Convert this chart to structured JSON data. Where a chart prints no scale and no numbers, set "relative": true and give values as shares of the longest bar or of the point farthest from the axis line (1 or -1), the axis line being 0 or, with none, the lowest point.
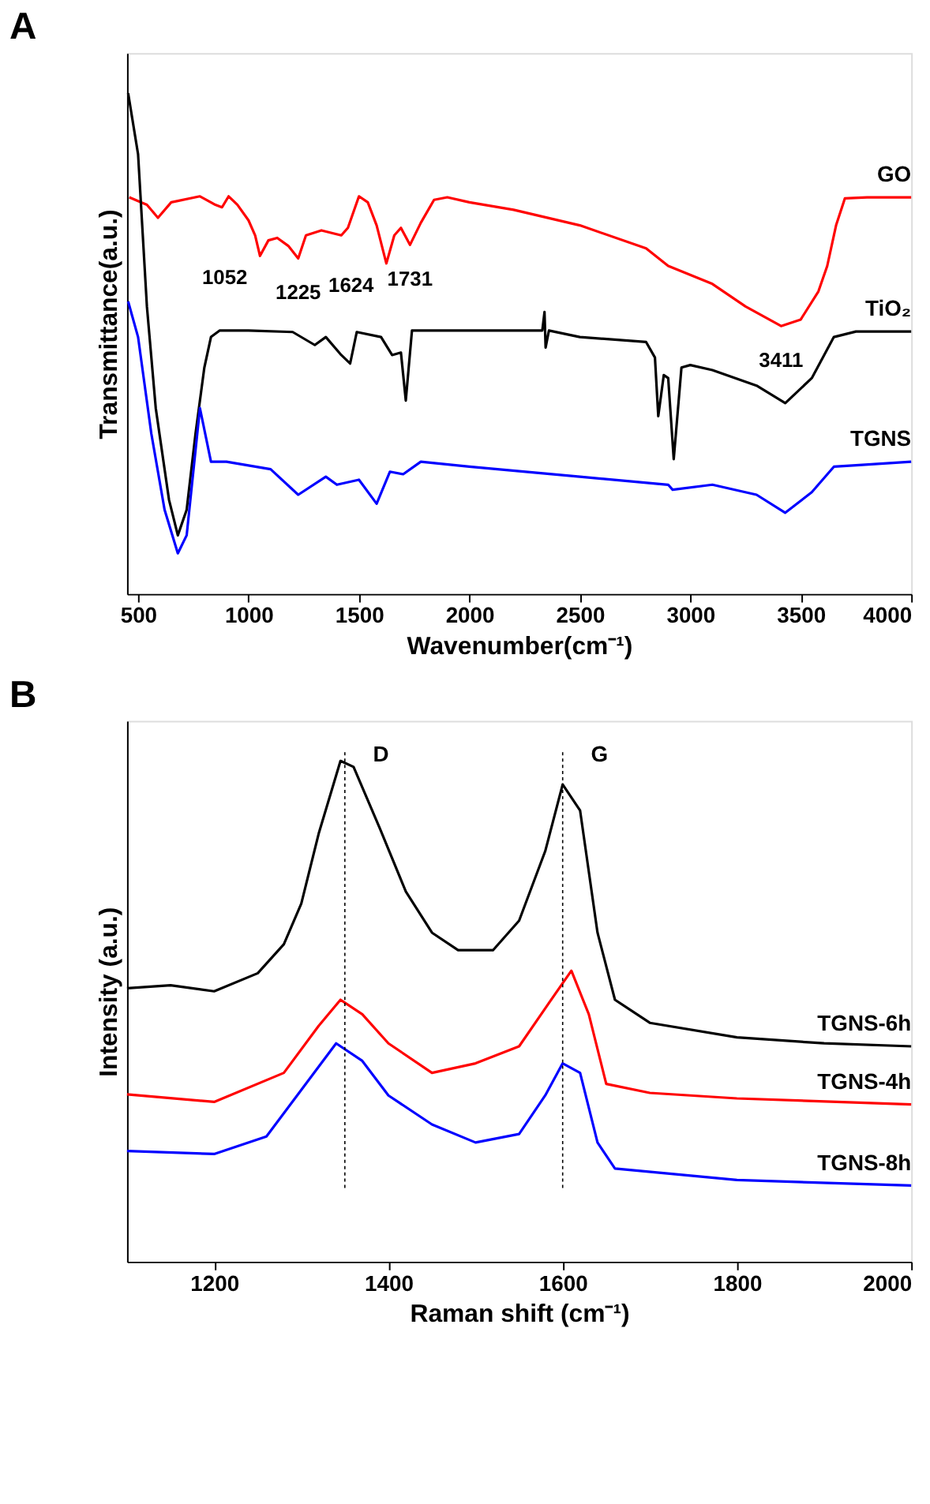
{
  "chart_data": [
    {
      "type": "line",
      "title": "A",
      "xlabel": "Wavenumber(cm⁻¹)",
      "ylabel": "Transmittance(a.u.)",
      "relative": true,
      "tick_labels": "x",
      "xlim": [
        450,
        4000
      ],
      "xticks": [
        500,
        1000,
        1500,
        2000,
        2500,
        3000,
        3500,
        4000
      ],
      "grid": false,
      "series": [
        {
          "name": "GO",
          "color": "#ff0000",
          "x": [
            460,
            540,
            590,
            650,
            780,
            850,
            880,
            910,
            950,
            1000,
            1030,
            1052,
            1090,
            1130,
            1180,
            1225,
            1260,
            1330,
            1420,
            1450,
            1500,
            1540,
            1580,
            1624,
            1660,
            1690,
            1731,
            1780,
            1840,
            1900,
            2000,
            2200,
            2500,
            2800,
            2900,
            3100,
            3250,
            3411,
            3500,
            3580,
            3620,
            3660,
            3700,
            3800,
            4000
          ],
          "values": [
            0.792,
            0.777,
            0.751,
            0.782,
            0.794,
            0.777,
            0.772,
            0.794,
            0.777,
            0.746,
            0.716,
            0.675,
            0.706,
            0.711,
            0.695,
            0.67,
            0.716,
            0.726,
            0.716,
            0.731,
            0.794,
            0.782,
            0.736,
            0.66,
            0.716,
            0.731,
            0.697,
            0.741,
            0.787,
            0.792,
            0.782,
            0.767,
            0.736,
            0.69,
            0.655,
            0.619,
            0.574,
            0.535,
            0.548,
            0.604,
            0.655,
            0.736,
            0.79,
            0.792,
            0.792
          ]
        },
        {
          "name": "TiO₂",
          "color": "#000000",
          "x": [
            455,
            500,
            540,
            580,
            640,
            680,
            720,
            760,
            800,
            830,
            870,
            1000,
            1200,
            1300,
            1350,
            1420,
            1460,
            1490,
            1600,
            1650,
            1690,
            1712,
            1740,
            2000,
            2330,
            2340,
            2345,
            2360,
            2500,
            2800,
            2840,
            2855,
            2880,
            2900,
            2925,
            2960,
            3000,
            3100,
            3300,
            3430,
            3550,
            3650,
            3750,
            4000
          ],
          "values": [
            1.0,
            0.878,
            0.574,
            0.371,
            0.188,
            0.117,
            0.168,
            0.32,
            0.452,
            0.513,
            0.526,
            0.526,
            0.523,
            0.497,
            0.513,
            0.477,
            0.46,
            0.523,
            0.513,
            0.477,
            0.482,
            0.386,
            0.526,
            0.526,
            0.526,
            0.563,
            0.492,
            0.526,
            0.513,
            0.503,
            0.472,
            0.355,
            0.437,
            0.431,
            0.269,
            0.452,
            0.457,
            0.447,
            0.416,
            0.381,
            0.431,
            0.513,
            0.524,
            0.524
          ]
        },
        {
          "name": "TGNS",
          "color": "#0000ff",
          "x": [
            455,
            500,
            560,
            620,
            680,
            720,
            780,
            830,
            900,
            1100,
            1225,
            1350,
            1400,
            1500,
            1580,
            1640,
            1700,
            1780,
            2000,
            2500,
            2900,
            2920,
            3100,
            3300,
            3430,
            3550,
            3650,
            3750,
            4000
          ],
          "values": [
            0.584,
            0.513,
            0.32,
            0.168,
            0.081,
            0.117,
            0.371,
            0.264,
            0.264,
            0.249,
            0.198,
            0.234,
            0.218,
            0.228,
            0.18,
            0.244,
            0.239,
            0.264,
            0.254,
            0.234,
            0.218,
            0.208,
            0.218,
            0.198,
            0.162,
            0.203,
            0.254,
            0.257,
            0.264
          ]
        }
      ],
      "annotations": [
        {
          "text": "1052",
          "x": 1052,
          "y": 0.675
        },
        {
          "text": "1225",
          "x": 1225,
          "y": 0.67
        },
        {
          "text": "1624",
          "x": 1624,
          "y": 0.66
        },
        {
          "text": "1731",
          "x": 1731,
          "y": 0.697
        },
        {
          "text": "3411",
          "x": 3411,
          "y": 0.535
        }
      ]
    },
    {
      "type": "line",
      "title": "B",
      "xlabel": "Raman shift (cm⁻¹)",
      "ylabel": "Intensity (a.u.)",
      "relative": true,
      "tick_labels": "x",
      "xlim": [
        1100,
        2000
      ],
      "xticks": [
        1200,
        1400,
        1600,
        1800,
        2000
      ],
      "grid": false,
      "ref_lines": [
        {
          "axis": "x",
          "value": 1350,
          "label": "D",
          "line_style": "dotted"
        },
        {
          "axis": "x",
          "value": 1600,
          "label": "G",
          "line_style": "dotted"
        }
      ],
      "series": [
        {
          "name": "TGNS-6h",
          "color": "#000000",
          "x": [
            1100,
            1150,
            1200,
            1250,
            1280,
            1300,
            1320,
            1345,
            1360,
            1390,
            1420,
            1450,
            1480,
            1520,
            1550,
            1580,
            1600,
            1620,
            1640,
            1660,
            1700,
            1800,
            1900,
            2000
          ],
          "values": [
            0.546,
            0.552,
            0.54,
            0.576,
            0.634,
            0.715,
            0.855,
            1.0,
            0.988,
            0.866,
            0.739,
            0.657,
            0.622,
            0.622,
            0.681,
            0.82,
            0.953,
            0.901,
            0.657,
            0.523,
            0.477,
            0.448,
            0.436,
            0.43
          ]
        },
        {
          "name": "TGNS-4h",
          "color": "#ff0000",
          "x": [
            1100,
            1200,
            1280,
            1320,
            1345,
            1370,
            1400,
            1450,
            1500,
            1550,
            1580,
            1610,
            1630,
            1650,
            1700,
            1800,
            2000
          ],
          "values": [
            0.334,
            0.319,
            0.377,
            0.471,
            0.523,
            0.494,
            0.436,
            0.377,
            0.396,
            0.43,
            0.506,
            0.581,
            0.494,
            0.355,
            0.337,
            0.326,
            0.314
          ]
        },
        {
          "name": "TGNS-8h",
          "color": "#0000ff",
          "x": [
            1100,
            1200,
            1260,
            1300,
            1340,
            1370,
            1400,
            1450,
            1500,
            1550,
            1580,
            1600,
            1620,
            1640,
            1660,
            1800,
            2000
          ],
          "values": [
            0.221,
            0.215,
            0.25,
            0.343,
            0.436,
            0.401,
            0.332,
            0.274,
            0.238,
            0.255,
            0.332,
            0.396,
            0.377,
            0.238,
            0.186,
            0.163,
            0.152
          ]
        }
      ]
    }
  ]
}
